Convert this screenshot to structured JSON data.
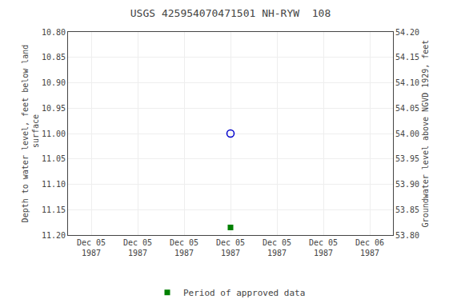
{
  "chart_data": {
    "type": "scatter",
    "title": "USGS 425954070471501 NH-RYW  108",
    "categories": [
      "Dec 05\n1987",
      "Dec 05\n1987",
      "Dec 05\n1987",
      "Dec 05\n1987",
      "Dec 05\n1987",
      "Dec 05\n1987",
      "Dec 06\n1987"
    ],
    "ylabel": "Depth to water level, feet below land\n surface",
    "y2label": "Groundwater level above NGVD 1929, feet",
    "ylim": [
      11.2,
      10.8
    ],
    "yticks": [
      {
        "value": 10.8,
        "label": "10.80"
      },
      10.85,
      {
        "value": 10.9,
        "label": "10.90"
      },
      10.95,
      {
        "value": 11.0,
        "label": "11.00"
      },
      11.05,
      {
        "value": 11.1,
        "label": "11.10"
      },
      11.15,
      {
        "value": 11.2,
        "label": "11.20"
      }
    ],
    "y2lim": [
      53.8,
      54.2
    ],
    "y2ticks": [
      {
        "value": 53.8,
        "label": "53.80"
      },
      53.85,
      {
        "value": 53.9,
        "label": "53.90"
      },
      53.95,
      {
        "value": 54.0,
        "label": "54.00"
      },
      54.05,
      {
        "value": 54.1,
        "label": "54.10"
      },
      54.15,
      {
        "value": 54.2,
        "label": "54.20"
      }
    ],
    "grid": true,
    "legend": "bottom",
    "series": [
      {
        "color": "#0000cc",
        "marker": "open_circle",
        "values": [
          null,
          null,
          null,
          11.0,
          null,
          null,
          null
        ]
      },
      {
        "name": "Period of approved data",
        "color": "#008000",
        "marker": "square",
        "values": [
          null,
          null,
          null,
          11.185,
          null,
          null,
          null
        ]
      }
    ]
  }
}
